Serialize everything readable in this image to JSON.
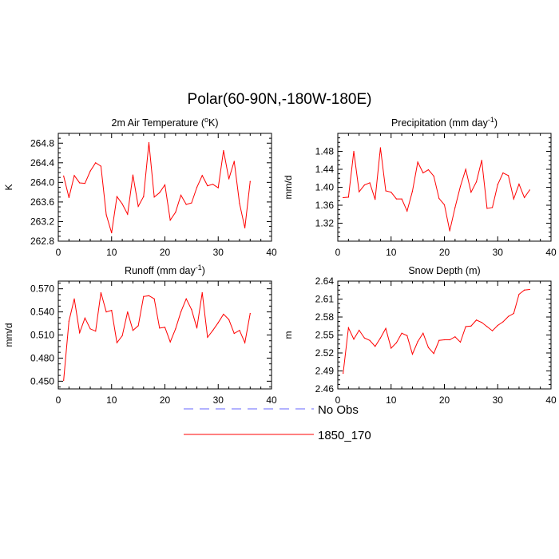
{
  "figure": {
    "title": "Polar(60-90N,-180W-180E)"
  },
  "legend": {
    "items": [
      {
        "label": "No Obs",
        "color": "#6666ff",
        "style": "dashed"
      },
      {
        "label": "1850_170",
        "color": "#ff0000",
        "style": "solid"
      }
    ]
  },
  "chart_data": [
    {
      "type": "line",
      "title": "2m Air Temperature (°K)",
      "title_base": "2m Air Temperature (",
      "title_sup": "o",
      "title_tail": "K)",
      "xlabel": "",
      "ylabel": "K",
      "xlim": [
        0,
        40
      ],
      "ylim": [
        262.8,
        265.0
      ],
      "xticks": [
        0,
        10,
        20,
        30,
        40
      ],
      "yticks": [
        262.8,
        263.2,
        263.6,
        264.0,
        264.4,
        264.8
      ],
      "ytick_labels": [
        "262.8",
        "263.2",
        "263.6",
        "264.0",
        "264.4",
        "264.8"
      ],
      "x": [
        1,
        2,
        3,
        4,
        5,
        6,
        7,
        8,
        9,
        10,
        11,
        12,
        13,
        14,
        15,
        16,
        17,
        18,
        19,
        20,
        21,
        22,
        23,
        24,
        25,
        26,
        27,
        28,
        29,
        30,
        31,
        32,
        33,
        34,
        35,
        36
      ],
      "series": [
        {
          "name": "1850_170",
          "color": "#ff0000",
          "values": [
            264.13,
            263.69,
            264.14,
            263.99,
            263.98,
            264.23,
            264.4,
            264.33,
            263.34,
            262.97,
            263.71,
            263.56,
            263.35,
            264.15,
            263.51,
            263.71,
            264.81,
            263.7,
            263.79,
            263.95,
            263.23,
            263.39,
            263.74,
            263.55,
            263.58,
            263.9,
            264.14,
            263.93,
            263.96,
            263.89,
            264.65,
            264.07,
            264.43,
            263.57,
            263.07,
            264.02
          ]
        }
      ]
    },
    {
      "type": "line",
      "title": "Precipitation (mm day-1)",
      "title_base": "Precipitation (mm day",
      "title_sup": "-1",
      "title_tail": ")",
      "xlabel": "",
      "ylabel": "mm/d",
      "xlim": [
        0,
        40
      ],
      "ylim": [
        1.28,
        1.52
      ],
      "xticks": [
        0,
        10,
        20,
        30,
        40
      ],
      "yticks": [
        1.32,
        1.36,
        1.4,
        1.44,
        1.48
      ],
      "ytick_labels": [
        "1.32",
        "1.36",
        "1.40",
        "1.44",
        "1.48"
      ],
      "x": [
        1,
        2,
        3,
        4,
        5,
        6,
        7,
        8,
        9,
        10,
        11,
        12,
        13,
        14,
        15,
        16,
        17,
        18,
        19,
        20,
        21,
        22,
        23,
        24,
        25,
        26,
        27,
        28,
        29,
        30,
        31,
        32,
        33,
        34,
        35,
        36
      ],
      "series": [
        {
          "name": "1850_170",
          "color": "#ff0000",
          "values": [
            1.377,
            1.378,
            1.48,
            1.39,
            1.405,
            1.41,
            1.373,
            1.488,
            1.392,
            1.389,
            1.374,
            1.374,
            1.347,
            1.391,
            1.456,
            1.432,
            1.439,
            1.425,
            1.375,
            1.361,
            1.303,
            1.355,
            1.402,
            1.44,
            1.389,
            1.412,
            1.46,
            1.353,
            1.355,
            1.406,
            1.432,
            1.426,
            1.374,
            1.407,
            1.377,
            1.394
          ]
        }
      ]
    },
    {
      "type": "line",
      "title": "Runoff (mm day-1)",
      "title_base": "Runoff (mm day",
      "title_sup": "-1",
      "title_tail": ")",
      "xlabel": "",
      "ylabel": "mm/d",
      "xlim": [
        0,
        40
      ],
      "ylim": [
        0.44,
        0.58
      ],
      "xticks": [
        0,
        10,
        20,
        30,
        40
      ],
      "yticks": [
        0.45,
        0.48,
        0.51,
        0.54,
        0.57
      ],
      "ytick_labels": [
        "0.450",
        "0.480",
        "0.510",
        "0.540",
        "0.570"
      ],
      "x": [
        1,
        2,
        3,
        4,
        5,
        6,
        7,
        8,
        9,
        10,
        11,
        12,
        13,
        14,
        15,
        16,
        17,
        18,
        19,
        20,
        21,
        22,
        23,
        24,
        25,
        26,
        27,
        28,
        29,
        30,
        31,
        32,
        33,
        34,
        35,
        36
      ],
      "series": [
        {
          "name": "1850_170",
          "color": "#ff0000",
          "values": [
            0.451,
            0.528,
            0.557,
            0.513,
            0.532,
            0.518,
            0.515,
            0.565,
            0.54,
            0.542,
            0.5,
            0.509,
            0.54,
            0.516,
            0.522,
            0.56,
            0.561,
            0.557,
            0.519,
            0.52,
            0.501,
            0.518,
            0.54,
            0.557,
            0.543,
            0.519,
            0.565,
            0.507,
            0.516,
            0.526,
            0.537,
            0.53,
            0.512,
            0.516,
            0.5,
            0.538
          ]
        }
      ]
    },
    {
      "type": "line",
      "title": "Snow Depth (m)",
      "title_base": "Snow Depth (m)",
      "title_sup": "",
      "title_tail": "",
      "xlabel": "",
      "ylabel": "m",
      "xlim": [
        0,
        40
      ],
      "ylim": [
        2.46,
        2.64
      ],
      "xticks": [
        0,
        10,
        20,
        30,
        40
      ],
      "yticks": [
        2.46,
        2.49,
        2.52,
        2.55,
        2.58,
        2.61,
        2.64
      ],
      "ytick_labels": [
        "2.46",
        "2.49",
        "2.52",
        "2.55",
        "2.58",
        "2.61",
        "2.64"
      ],
      "x": [
        1,
        2,
        3,
        4,
        5,
        6,
        7,
        8,
        9,
        10,
        11,
        12,
        13,
        14,
        15,
        16,
        17,
        18,
        19,
        20,
        21,
        22,
        23,
        24,
        25,
        26,
        27,
        28,
        29,
        30,
        31,
        32,
        33,
        34,
        35,
        36
      ],
      "series": [
        {
          "name": "1850_170",
          "color": "#ff0000",
          "values": [
            2.486,
            2.562,
            2.543,
            2.558,
            2.545,
            2.541,
            2.531,
            2.545,
            2.561,
            2.528,
            2.537,
            2.553,
            2.549,
            2.518,
            2.539,
            2.553,
            2.529,
            2.519,
            2.541,
            2.542,
            2.542,
            2.547,
            2.538,
            2.564,
            2.565,
            2.575,
            2.571,
            2.564,
            2.557,
            2.566,
            2.572,
            2.581,
            2.586,
            2.618,
            2.625,
            2.626
          ]
        }
      ]
    }
  ]
}
